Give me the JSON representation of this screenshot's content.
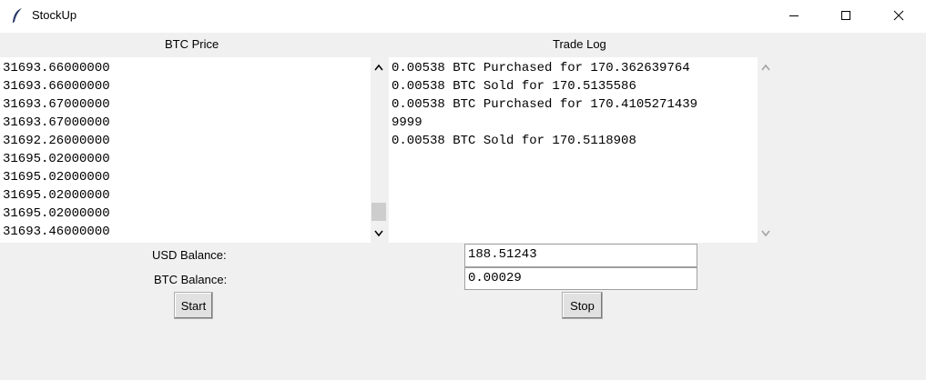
{
  "window": {
    "title": "StockUp"
  },
  "price_panel": {
    "label": "BTC Price",
    "lines": [
      "31693.66000000",
      "31693.66000000",
      "31693.67000000",
      "31693.67000000",
      "31692.26000000",
      "31695.02000000",
      "31695.02000000",
      "31695.02000000",
      "31695.02000000",
      "31693.46000000"
    ]
  },
  "trade_panel": {
    "label": "Trade Log",
    "lines": [
      "0.00538 BTC Purchased for 170.362639764",
      "0.00538 BTC Sold for 170.5135586",
      "0.00538 BTC Purchased for 170.4105271439",
      "9999",
      "0.00538 BTC Sold for 170.5118908"
    ]
  },
  "balances": {
    "usd_label": "USD Balance:",
    "usd_value": "188.51243",
    "btc_label": "BTC Balance:",
    "btc_value": "0.00029"
  },
  "controls": {
    "start_label": "Start",
    "stop_label": "Stop"
  }
}
